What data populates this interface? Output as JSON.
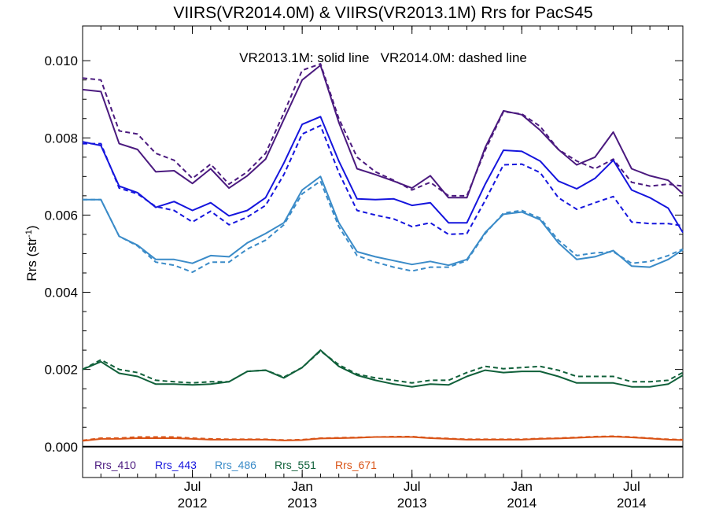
{
  "chart_data": {
    "type": "line",
    "title": "VIIRS(VR2014.0M) & VIIRS(VR2013.1M)  Rrs for PacS45",
    "annotation": "VR2013.1M: solid line   VR2014.0M: dashed line",
    "ylabel": "Rrs (str",
    "ylabel_sup": "-1",
    "ylabel_end": ")",
    "ylim": [
      -0.0008,
      0.0109
    ],
    "xlim": [
      0,
      32.8
    ],
    "yticks": [
      {
        "value": 0.0,
        "label": "0.000"
      },
      {
        "value": 0.002,
        "label": "0.002"
      },
      {
        "value": 0.004,
        "label": "0.004"
      },
      {
        "value": 0.006,
        "label": "0.006"
      },
      {
        "value": 0.008,
        "label": "0.008"
      },
      {
        "value": 0.01,
        "label": "0.010"
      }
    ],
    "xticks": [
      {
        "x": 6,
        "month": "Jul",
        "year": "2012"
      },
      {
        "x": 12,
        "month": "Jan",
        "year": "2013"
      },
      {
        "x": 18,
        "month": "Jul",
        "year": "2013"
      },
      {
        "x": 24,
        "month": "Jan",
        "year": "2014"
      },
      {
        "x": 30,
        "month": "Jul",
        "year": "2014"
      }
    ],
    "grid": false,
    "legend_position": "bottom-left",
    "x": [
      0,
      1,
      2,
      3,
      4,
      5,
      6,
      7,
      8,
      9,
      10,
      11,
      12,
      13,
      14,
      15,
      16,
      17,
      18,
      19,
      20,
      21,
      22,
      23,
      24,
      25,
      26,
      27,
      28,
      29,
      30,
      31,
      32,
      32.8
    ],
    "series": [
      {
        "name": "Rrs_410",
        "color": "#4b1a7f",
        "style": "solid",
        "values": [
          0.00925,
          0.0092,
          0.00785,
          0.0077,
          0.00712,
          0.00715,
          0.00682,
          0.0072,
          0.0067,
          0.00702,
          0.00745,
          0.00848,
          0.0095,
          0.00988,
          0.0084,
          0.0072,
          0.00705,
          0.00688,
          0.0067,
          0.00702,
          0.00645,
          0.00645,
          0.00775,
          0.0087,
          0.0086,
          0.0082,
          0.0077,
          0.0073,
          0.0075,
          0.00815,
          0.0072,
          0.00702,
          0.0069,
          0.00655
        ]
      },
      {
        "name": "Rrs_410",
        "color": "#4b1a7f",
        "style": "dashed",
        "values": [
          0.00955,
          0.0095,
          0.00818,
          0.0081,
          0.0076,
          0.00742,
          0.00695,
          0.00732,
          0.0068,
          0.00712,
          0.0076,
          0.00865,
          0.00975,
          0.00992,
          0.0085,
          0.0075,
          0.00712,
          0.0069,
          0.00665,
          0.00685,
          0.0065,
          0.0065,
          0.00768,
          0.00868,
          0.00862,
          0.0083,
          0.0077,
          0.0074,
          0.0072,
          0.00745,
          0.00685,
          0.00675,
          0.0068,
          0.00675
        ]
      },
      {
        "name": "Rrs_443",
        "color": "#1515dd",
        "style": "solid",
        "values": [
          0.0079,
          0.0078,
          0.00675,
          0.00658,
          0.0062,
          0.00635,
          0.00612,
          0.00632,
          0.00598,
          0.00612,
          0.00645,
          0.00735,
          0.00835,
          0.00855,
          0.0074,
          0.00642,
          0.0064,
          0.00642,
          0.00625,
          0.00632,
          0.0058,
          0.0058,
          0.0068,
          0.00768,
          0.00765,
          0.0074,
          0.00688,
          0.00668,
          0.00695,
          0.00742,
          0.00665,
          0.00645,
          0.00618,
          0.00555
        ]
      },
      {
        "name": "Rrs_443",
        "color": "#1515dd",
        "style": "dashed",
        "values": [
          0.00785,
          0.00785,
          0.0067,
          0.00655,
          0.00622,
          0.00612,
          0.00582,
          0.0061,
          0.00575,
          0.00595,
          0.00625,
          0.00705,
          0.0081,
          0.00832,
          0.0071,
          0.00612,
          0.006,
          0.0059,
          0.0057,
          0.0058,
          0.0055,
          0.00552,
          0.00638,
          0.0073,
          0.00732,
          0.0071,
          0.00645,
          0.00615,
          0.00632,
          0.00648,
          0.00582,
          0.00578,
          0.00578,
          0.00572
        ]
      },
      {
        "name": "Rrs_486",
        "color": "#3a8bc8",
        "style": "solid",
        "values": [
          0.0064,
          0.0064,
          0.00545,
          0.00522,
          0.00485,
          0.00485,
          0.00475,
          0.00495,
          0.00492,
          0.00528,
          0.00552,
          0.0058,
          0.00665,
          0.007,
          0.0058,
          0.00505,
          0.00492,
          0.00482,
          0.00472,
          0.0048,
          0.0047,
          0.00485,
          0.00555,
          0.00602,
          0.00608,
          0.00588,
          0.00528,
          0.00485,
          0.00492,
          0.00508,
          0.00468,
          0.00465,
          0.00485,
          0.0051
        ]
      },
      {
        "name": "Rrs_486",
        "color": "#3a8bc8",
        "style": "dashed",
        "values": [
          0.0064,
          0.0064,
          0.00545,
          0.0052,
          0.00478,
          0.0047,
          0.00452,
          0.00478,
          0.00478,
          0.00512,
          0.00535,
          0.00575,
          0.00655,
          0.00688,
          0.0057,
          0.00495,
          0.00478,
          0.00465,
          0.00455,
          0.00465,
          0.00465,
          0.00482,
          0.00552,
          0.00605,
          0.00612,
          0.00592,
          0.00535,
          0.00495,
          0.00502,
          0.00505,
          0.00475,
          0.0048,
          0.00495,
          0.00512
        ]
      },
      {
        "name": "Rrs_551",
        "color": "#10603a",
        "style": "solid",
        "values": [
          0.002,
          0.0022,
          0.0019,
          0.00182,
          0.00162,
          0.00162,
          0.0016,
          0.00162,
          0.00168,
          0.00195,
          0.00198,
          0.00178,
          0.00205,
          0.0025,
          0.00208,
          0.00185,
          0.00172,
          0.00162,
          0.00155,
          0.00162,
          0.0016,
          0.00182,
          0.00198,
          0.00192,
          0.00195,
          0.00195,
          0.00182,
          0.00165,
          0.00165,
          0.00165,
          0.00155,
          0.00155,
          0.00162,
          0.00185
        ]
      },
      {
        "name": "Rrs_551",
        "color": "#10603a",
        "style": "dashed",
        "values": [
          0.002,
          0.00225,
          0.002,
          0.00192,
          0.00172,
          0.00168,
          0.00165,
          0.00168,
          0.00168,
          0.00195,
          0.00198,
          0.0018,
          0.00205,
          0.00248,
          0.00212,
          0.00188,
          0.00178,
          0.00172,
          0.00165,
          0.00172,
          0.00172,
          0.00192,
          0.00208,
          0.00202,
          0.00205,
          0.00208,
          0.00198,
          0.00182,
          0.00182,
          0.00182,
          0.00168,
          0.00168,
          0.00172,
          0.00192
        ]
      },
      {
        "name": "Rrs_671",
        "color": "#d95316",
        "style": "solid",
        "values": [
          0.00015,
          0.0002,
          0.0002,
          0.00022,
          0.00022,
          0.00022,
          0.0002,
          0.00018,
          0.00018,
          0.00018,
          0.00018,
          0.00016,
          0.00017,
          0.00021,
          0.00022,
          0.00023,
          0.00025,
          0.00025,
          0.00025,
          0.00022,
          0.0002,
          0.00018,
          0.00018,
          0.00018,
          0.00018,
          0.0002,
          0.00021,
          0.00023,
          0.00025,
          0.00026,
          0.00024,
          0.00021,
          0.00018,
          0.00017
        ]
      },
      {
        "name": "Rrs_671",
        "color": "#d95316",
        "style": "dashed",
        "values": [
          0.00016,
          0.00022,
          0.00022,
          0.00025,
          0.00025,
          0.00025,
          0.00022,
          0.0002,
          0.00019,
          0.00019,
          0.00019,
          0.00017,
          0.00018,
          0.00022,
          0.00023,
          0.00024,
          0.00025,
          0.00026,
          0.00026,
          0.00023,
          0.00021,
          0.00019,
          0.00019,
          0.00019,
          0.00019,
          0.00021,
          0.00022,
          0.00024,
          0.00026,
          0.00027,
          0.00025,
          0.00022,
          0.00019,
          0.00018
        ]
      }
    ],
    "legend": [
      {
        "label": "Rrs_410",
        "color": "#4b1a7f"
      },
      {
        "label": "Rrs_443",
        "color": "#1515dd"
      },
      {
        "label": "Rrs_486",
        "color": "#3a8bc8"
      },
      {
        "label": "Rrs_551",
        "color": "#10603a"
      },
      {
        "label": "Rrs_671",
        "color": "#d95316"
      }
    ]
  }
}
